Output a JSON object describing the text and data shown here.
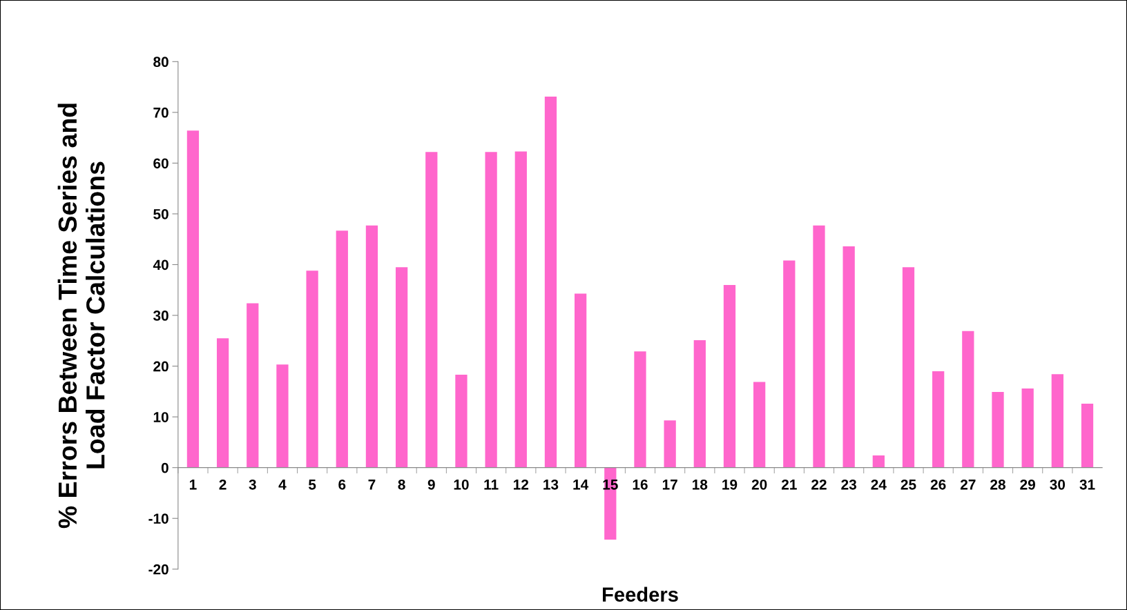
{
  "chart_data": {
    "type": "bar",
    "xlabel": "Feeders",
    "ylabel": "% Errors Between Time Series and\nLoad Factor Calculations",
    "categories": [
      "1",
      "2",
      "3",
      "4",
      "5",
      "6",
      "7",
      "8",
      "9",
      "10",
      "11",
      "12",
      "13",
      "14",
      "15",
      "16",
      "17",
      "18",
      "19",
      "20",
      "21",
      "22",
      "23",
      "24",
      "25",
      "26",
      "27",
      "28",
      "29",
      "30",
      "31"
    ],
    "values": [
      66.4,
      25.5,
      32.4,
      20.3,
      38.8,
      46.7,
      47.7,
      39.5,
      62.2,
      18.3,
      62.2,
      62.3,
      73.1,
      34.3,
      -14.2,
      22.9,
      9.3,
      25.1,
      36.0,
      16.9,
      40.8,
      47.7,
      43.6,
      2.4,
      39.5,
      19.0,
      26.9,
      14.9,
      15.6,
      18.4,
      12.6
    ],
    "color": "#ff66cc",
    "ylim": [
      -20,
      80
    ],
    "yticks": [
      -20,
      -10,
      0,
      10,
      20,
      30,
      40,
      50,
      60,
      70,
      80
    ],
    "grid": false
  }
}
